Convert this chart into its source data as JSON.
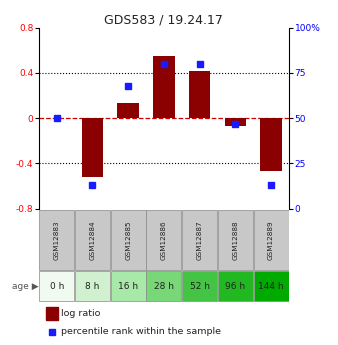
{
  "title": "GDS583 / 19.24.17",
  "samples": [
    "GSM12883",
    "GSM12884",
    "GSM12885",
    "GSM12886",
    "GSM12887",
    "GSM12888",
    "GSM12889"
  ],
  "ages": [
    "0 h",
    "8 h",
    "16 h",
    "28 h",
    "52 h",
    "96 h",
    "144 h"
  ],
  "log_ratio": [
    0.0,
    -0.52,
    0.13,
    0.55,
    0.42,
    -0.07,
    -0.47
  ],
  "percentile_rank": [
    50,
    13,
    68,
    80,
    80,
    47,
    13
  ],
  "ylim": [
    -0.8,
    0.8
  ],
  "left_yticks": [
    -0.8,
    -0.4,
    0.0,
    0.4,
    0.8
  ],
  "left_yticklabels": [
    "-0.8",
    "-0.4",
    "0",
    "0.4",
    "0.8"
  ],
  "right_yticks": [
    0,
    25,
    50,
    75,
    100
  ],
  "right_yticklabels": [
    "0",
    "25",
    "50",
    "75",
    "100%"
  ],
  "bar_color": "#8B0000",
  "dot_color": "#1a1aff",
  "age_colors": [
    "#f0faf0",
    "#d0f0d0",
    "#a8e8a8",
    "#78d878",
    "#44c444",
    "#22b822",
    "#00aa00"
  ],
  "gsm_color": "#c8c8c8",
  "grid_color": "#000000",
  "zero_line_color": "#cc0000",
  "bg_color": "#ffffff",
  "label_log_ratio": "log ratio",
  "label_percentile": "percentile rank within the sample",
  "legend_bar_color": "#8B0000",
  "legend_dot_color": "#1a1aff"
}
